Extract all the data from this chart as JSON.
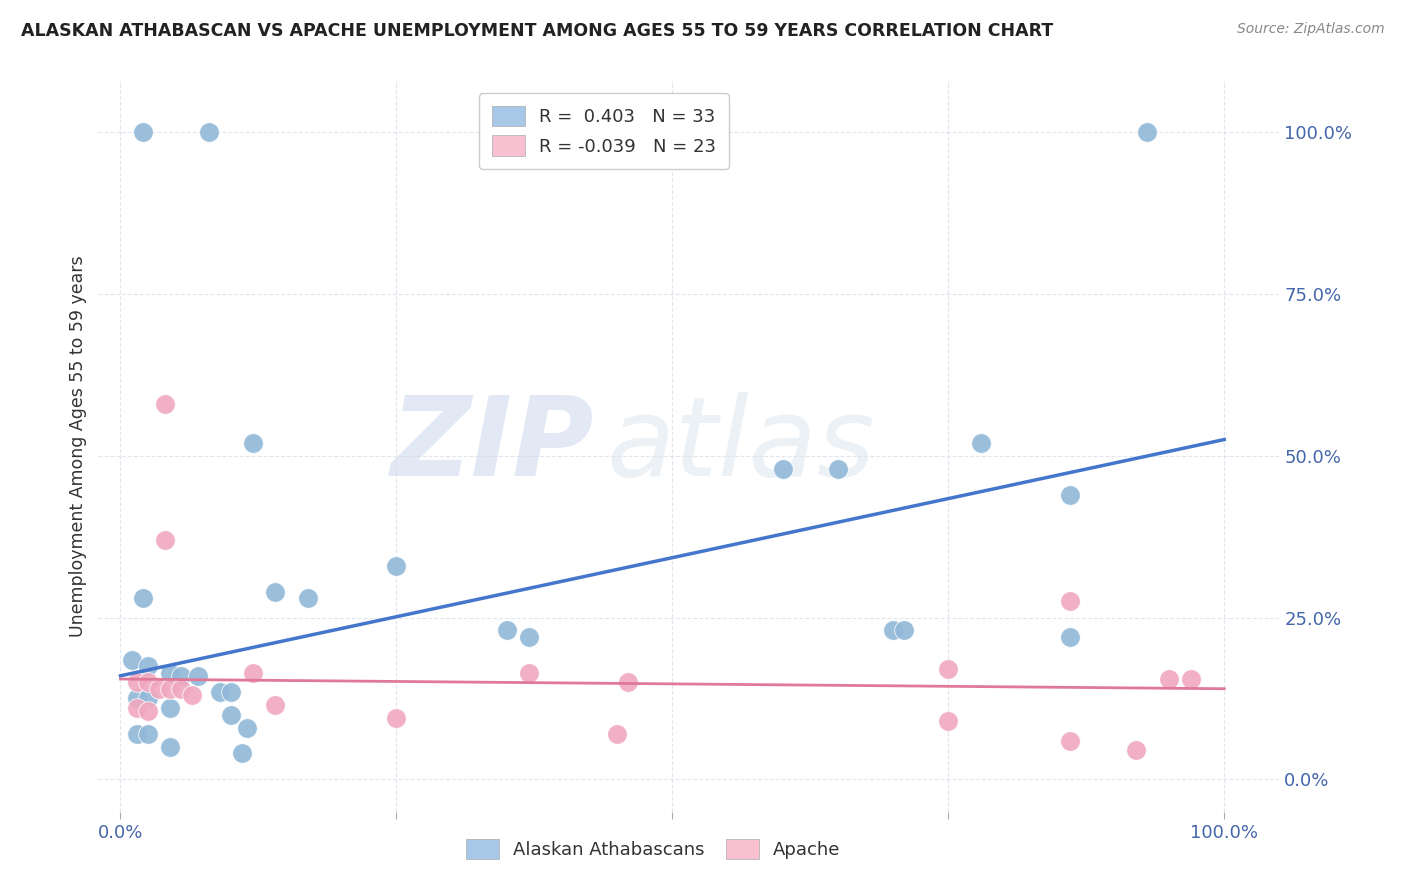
{
  "title": "ALASKAN ATHABASCAN VS APACHE UNEMPLOYMENT AMONG AGES 55 TO 59 YEARS CORRELATION CHART",
  "source": "Source: ZipAtlas.com",
  "ylabel": "Unemployment Among Ages 55 to 59 years",
  "xlim": [
    -0.02,
    1.05
  ],
  "ylim": [
    -0.05,
    1.08
  ],
  "ytick_labels": [
    "0.0%",
    "25.0%",
    "50.0%",
    "75.0%",
    "100.0%"
  ],
  "ytick_positions": [
    0.0,
    0.25,
    0.5,
    0.75,
    1.0
  ],
  "watermark_zip": "ZIP",
  "watermark_atlas": "atlas",
  "legend_items": [
    {
      "label": "R =  0.403   N = 33",
      "color": "#a8c8e8"
    },
    {
      "label": "R = -0.039   N = 23",
      "color": "#f8c0d0"
    }
  ],
  "legend_bottom": [
    "Alaskan Athabascans",
    "Apache"
  ],
  "blue_color": "#90b8d8",
  "pink_color": "#f0a8c0",
  "blue_line_color": "#4477cc",
  "pink_line_color": "#e07898",
  "blue_scatter": [
    [
      0.02,
      1.0
    ],
    [
      0.08,
      1.0
    ],
    [
      0.93,
      1.0
    ],
    [
      0.12,
      0.52
    ],
    [
      0.6,
      0.48
    ],
    [
      0.65,
      0.48
    ],
    [
      0.78,
      0.52
    ],
    [
      0.86,
      0.44
    ],
    [
      0.02,
      0.28
    ],
    [
      0.14,
      0.29
    ],
    [
      0.17,
      0.28
    ],
    [
      0.25,
      0.33
    ],
    [
      0.35,
      0.23
    ],
    [
      0.37,
      0.22
    ],
    [
      0.86,
      0.22
    ],
    [
      0.7,
      0.23
    ],
    [
      0.71,
      0.23
    ],
    [
      0.01,
      0.185
    ],
    [
      0.025,
      0.175
    ],
    [
      0.045,
      0.165
    ],
    [
      0.055,
      0.16
    ],
    [
      0.07,
      0.16
    ],
    [
      0.09,
      0.135
    ],
    [
      0.1,
      0.135
    ],
    [
      0.015,
      0.125
    ],
    [
      0.025,
      0.125
    ],
    [
      0.045,
      0.11
    ],
    [
      0.1,
      0.1
    ],
    [
      0.115,
      0.08
    ],
    [
      0.015,
      0.07
    ],
    [
      0.025,
      0.07
    ],
    [
      0.045,
      0.05
    ],
    [
      0.11,
      0.04
    ]
  ],
  "pink_scatter": [
    [
      0.04,
      0.58
    ],
    [
      0.04,
      0.37
    ],
    [
      0.86,
      0.275
    ],
    [
      0.12,
      0.165
    ],
    [
      0.37,
      0.165
    ],
    [
      0.46,
      0.15
    ],
    [
      0.95,
      0.155
    ],
    [
      0.97,
      0.155
    ],
    [
      0.015,
      0.15
    ],
    [
      0.025,
      0.15
    ],
    [
      0.035,
      0.14
    ],
    [
      0.045,
      0.14
    ],
    [
      0.055,
      0.14
    ],
    [
      0.065,
      0.13
    ],
    [
      0.14,
      0.115
    ],
    [
      0.015,
      0.11
    ],
    [
      0.025,
      0.105
    ],
    [
      0.25,
      0.095
    ],
    [
      0.75,
      0.17
    ],
    [
      0.75,
      0.09
    ],
    [
      0.86,
      0.06
    ],
    [
      0.92,
      0.045
    ],
    [
      0.45,
      0.07
    ]
  ],
  "blue_trendline_x": [
    0.0,
    1.0
  ],
  "blue_trendline_y": [
    0.16,
    0.525
  ],
  "pink_trendline_x": [
    0.0,
    1.0
  ],
  "pink_trendline_y": [
    0.155,
    0.14
  ]
}
